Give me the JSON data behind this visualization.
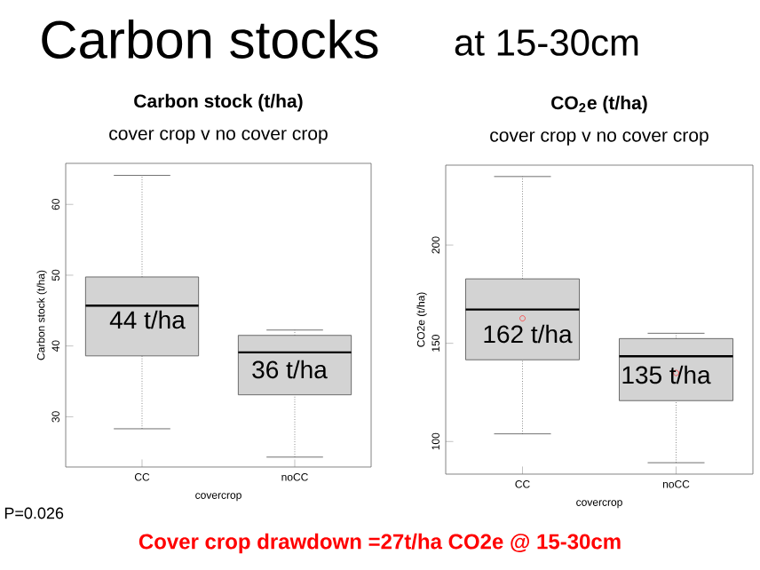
{
  "chart_data": [
    {
      "type": "box",
      "title": "Carbon stock (t/ha)",
      "subtitle": "cover crop v no cover crop",
      "xlabel": "covercrop",
      "ylabel": "Carbon stock (t/ha)",
      "categories": [
        "CC",
        "noCC"
      ],
      "color": "#d3d3d3",
      "ylim": [
        22.9,
        65.8
      ],
      "yticks": [
        30,
        40,
        50,
        60
      ],
      "boxes": [
        {
          "low": 28.3,
          "q1": 38.6,
          "median": 45.7,
          "q3": 49.75,
          "high": 64.1
        },
        {
          "low": 24.3,
          "q1": 33.1,
          "median": 39.1,
          "q3": 41.5,
          "high": 42.25
        }
      ],
      "annotations": [
        "Carbon stocks",
        "at 15-30cm",
        "P=0.026",
        "44 t/ha",
        "36 t/ha"
      ]
    },
    {
      "type": "box",
      "title": "CO$_{2}$e (t/ha)",
      "subtitle": "cover crop v no cover crop",
      "xlabel": "covercrop",
      "ylabel": "CO2e (t/ha)",
      "categories": [
        "CC",
        "noCC"
      ],
      "color": "#d3d3d3",
      "ylim": [
        83.4,
        240.7
      ],
      "yticks": [
        100,
        150,
        200
      ],
      "boxes": [
        {
          "low": 103.9,
          "q1": 141.6,
          "median": 167.2,
          "q3": 182.8,
          "high": 234.9,
          "mean": 162.7
        },
        {
          "low": 89.2,
          "q1": 120.8,
          "median": 143.4,
          "q3": 152.4,
          "high": 155.1,
          "mean": 134.9
        }
      ],
      "annotations": [
        "162 t/ha",
        "135 t/ha",
        "Cover crop drawdown =27t/ha CO2e @ 15-30cm"
      ]
    }
  ]
}
